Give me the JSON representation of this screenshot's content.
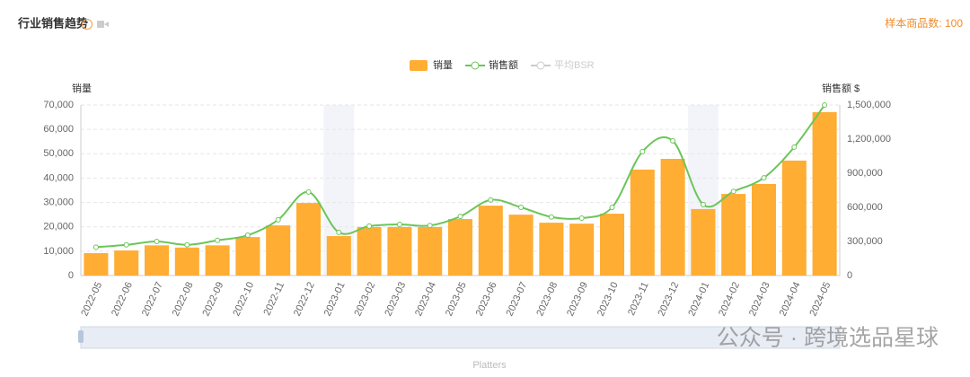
{
  "title": "行业销售趋势",
  "sample_count": "样本商品数: 100",
  "watermark": "公众号 · 跨境选品星球",
  "chart_data": {
    "type": "bar-line",
    "categories": [
      "2022-05",
      "2022-06",
      "2022-07",
      "2022-08",
      "2022-09",
      "2022-10",
      "2022-11",
      "2022-12",
      "2023-01",
      "2023-02",
      "2023-03",
      "2023-04",
      "2023-05",
      "2023-06",
      "2023-07",
      "2023-08",
      "2023-09",
      "2023-10",
      "2023-11",
      "2023-12",
      "2024-01",
      "2024-02",
      "2024-03",
      "2024-04",
      "2024-05"
    ],
    "series": [
      {
        "name": "销量",
        "color": "#ffad33",
        "kind": "bar",
        "values": [
          9200,
          10300,
          12400,
          11500,
          12400,
          15800,
          20600,
          29800,
          16200,
          19900,
          19900,
          19900,
          23200,
          28700,
          25000,
          21700,
          21300,
          25400,
          43500,
          47900,
          27300,
          33500,
          37600,
          47200,
          67100
        ]
      },
      {
        "name": "销售额",
        "color": "#6cc55a",
        "kind": "line",
        "axis": "y2",
        "values": [
          250000,
          270000,
          300000,
          270000,
          310000,
          355000,
          490000,
          735000,
          380000,
          435000,
          450000,
          440000,
          520000,
          665000,
          600000,
          515000,
          505000,
          600000,
          1090000,
          1185000,
          625000,
          740000,
          860000,
          1130000,
          1500000
        ]
      }
    ],
    "inactive_legend": {
      "name": "平均BSR",
      "color": "#cccccc"
    },
    "ylabel": "销量",
    "y2label": "销售额 $",
    "zoom_label": "Platters",
    "ylim": [
      0,
      70000
    ],
    "yticks": [
      0,
      {
        "value": 10000,
        "label": "10,000"
      },
      {
        "value": 20000,
        "label": "20,000"
      },
      {
        "value": 30000,
        "label": "30,000"
      },
      {
        "value": 40000,
        "label": "40,000"
      },
      {
        "value": 50000,
        "label": "50,000"
      },
      {
        "value": 60000,
        "label": "60,000"
      },
      {
        "value": 70000,
        "label": "70,000"
      }
    ],
    "y2lim": [
      0,
      1500000
    ],
    "y2ticks": [
      0,
      {
        "value": 300000,
        "label": "300,000"
      },
      {
        "value": 600000,
        "label": "600,000"
      },
      {
        "value": 900000,
        "label": "900,000"
      },
      {
        "value": 1200000,
        "label": "1,200,000"
      },
      {
        "value": 1500000,
        "label": "1,500,000"
      }
    ],
    "grid": true
  }
}
